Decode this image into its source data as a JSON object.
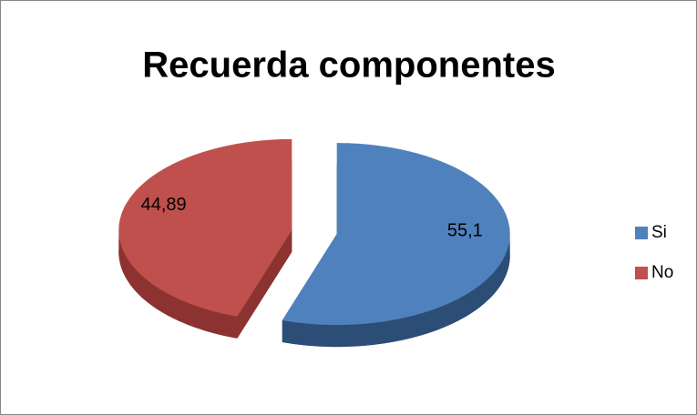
{
  "chart_data": {
    "type": "pie",
    "title": "Recuerda componentes",
    "categories": [
      "Si",
      "No"
    ],
    "values": [
      55.1,
      44.89
    ],
    "value_labels": [
      "55,1",
      "44,89"
    ],
    "colors": [
      "#4f81bd",
      "#c0504d"
    ],
    "side_colors": [
      "#2c4d75",
      "#8c3331"
    ],
    "legend": "right"
  }
}
